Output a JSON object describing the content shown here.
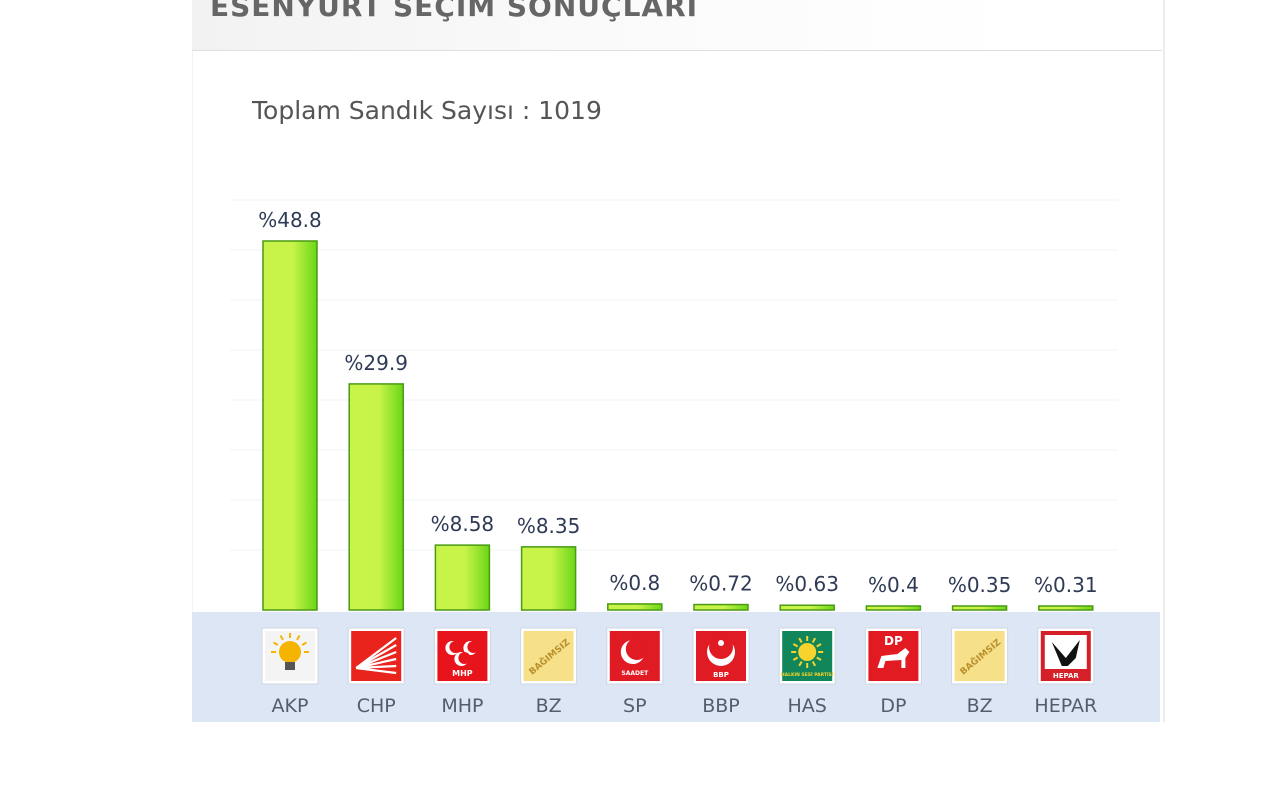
{
  "header": {
    "title": "ESENYURT SEÇİM SONUÇLARI"
  },
  "subtitle": "Toplam Sandık Sayısı : 1019",
  "colors": {
    "bar_light": "#c8f44a",
    "bar_dark": "#6ad617",
    "bar_stroke": "#4a9a12",
    "label_band": "#dde6f4",
    "value_text": "#2f3a55",
    "category_text": "#555c6e"
  },
  "parties": [
    {
      "name": "AKP",
      "logo_icon": "akp-lightbulb-icon",
      "logo_bg": "#f4f4f4",
      "logo_fg": "#f4b400"
    },
    {
      "name": "CHP",
      "logo_icon": "chp-six-arrows-icon",
      "logo_bg": "#e8241d",
      "logo_fg": "#ffffff"
    },
    {
      "name": "MHP",
      "logo_icon": "mhp-three-crescents-icon",
      "logo_bg": "#e8141b",
      "logo_fg": "#ffffff",
      "logo_text": "MHP"
    },
    {
      "name": "BZ",
      "logo_icon": "bz-independent-icon",
      "logo_bg": "#f7e08a",
      "logo_fg": "#b9912c",
      "logo_text": "BAĞIMSIZ"
    },
    {
      "name": "SP",
      "logo_icon": "sp-crescent-icon",
      "logo_bg": "#e01b24",
      "logo_fg": "#ffffff",
      "logo_text": "SAADET"
    },
    {
      "name": "BBP",
      "logo_icon": "bbp-crescent-star-icon",
      "logo_bg": "#e01b24",
      "logo_fg": "#ffffff",
      "logo_text": "BBP"
    },
    {
      "name": "HAS",
      "logo_icon": "has-sun-icon",
      "logo_bg": "#11865a",
      "logo_fg": "#f6d32d",
      "logo_text": "HALKIN SESİ PARTİSİ"
    },
    {
      "name": "DP",
      "logo_icon": "dp-horse-icon",
      "logo_bg": "#e21b22",
      "logo_fg": "#ffffff",
      "logo_text": "DP"
    },
    {
      "name": "BZ",
      "logo_icon": "bz-independent-icon",
      "logo_bg": "#f7e08a",
      "logo_fg": "#b9912c",
      "logo_text": "BAĞIMSIZ"
    },
    {
      "name": "HEPAR",
      "logo_icon": "hepar-hand-icon",
      "logo_bg": "#d5202a",
      "logo_fg": "#ffffff",
      "logo_text": "HEPAR"
    }
  ],
  "chart_data": {
    "type": "bar",
    "categories": [
      "AKP",
      "CHP",
      "MHP",
      "BZ",
      "SP",
      "BBP",
      "HAS",
      "DP",
      "BZ",
      "HEPAR"
    ],
    "values": [
      48.8,
      29.9,
      8.58,
      8.35,
      0.8,
      0.72,
      0.63,
      0.4,
      0.35,
      0.31
    ],
    "data_labels": [
      "%48.8",
      "%29.9",
      "%8.58",
      "%8.35",
      "%0.8",
      "%0.72",
      "%0.63",
      "%0.4",
      "%0.35",
      "%0.31"
    ],
    "title": "ESENYURT SEÇİM SONUÇLARI",
    "subtitle": "Toplam Sandık Sayısı : 1019",
    "xlabel": "",
    "ylabel": "",
    "ylim": [
      0,
      48.8
    ],
    "grid": true,
    "legend": "none"
  }
}
